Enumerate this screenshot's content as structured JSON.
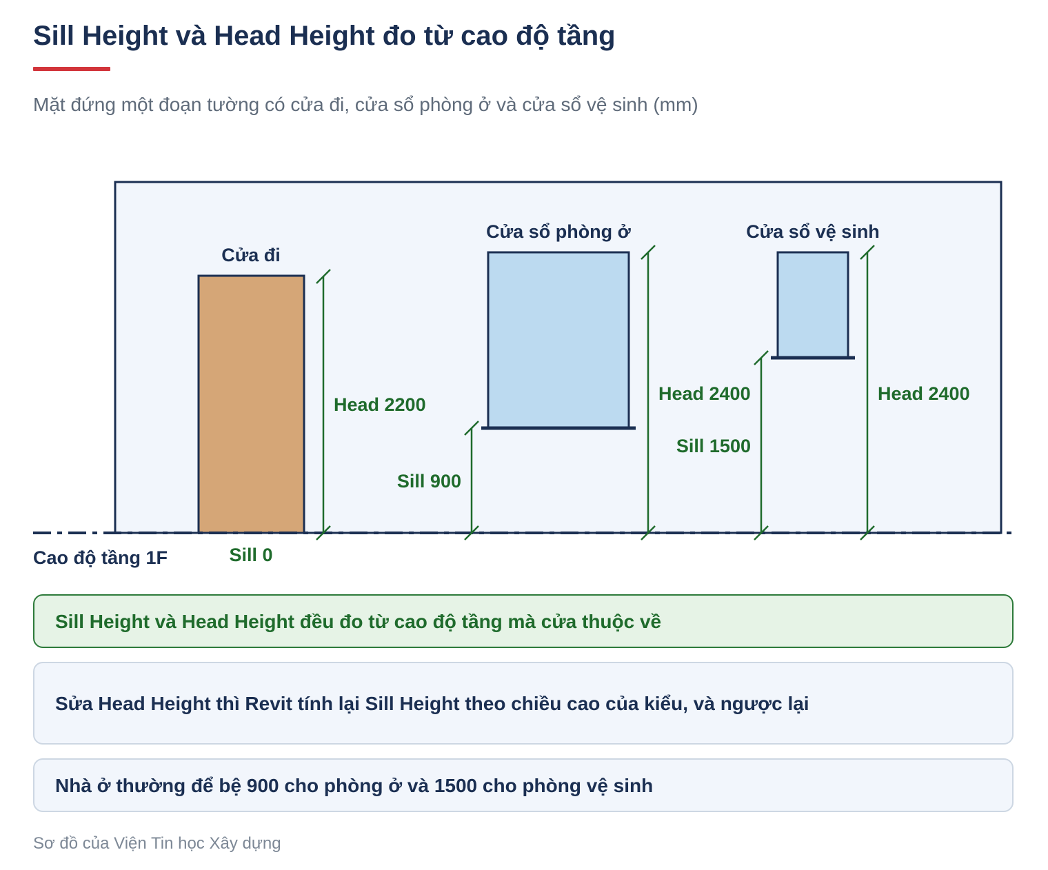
{
  "title": "Sill Height và Head Height đo từ cao độ tầng",
  "subtitle": "Mặt đứng một đoạn tường có cửa đi, cửa sổ phòng ở và cửa sổ vệ sinh (mm)",
  "diagram": {
    "level_label": "Cao độ tầng 1F",
    "openings": [
      {
        "name": "Cửa đi",
        "type": "door",
        "sill_mm": 0,
        "head_mm": 2200,
        "sill_label": "Sill 0",
        "head_label": "Head 2200"
      },
      {
        "name": "Cửa sổ phòng ở",
        "type": "window",
        "sill_mm": 900,
        "head_mm": 2400,
        "sill_label": "Sill 900",
        "head_label": "Head 2400"
      },
      {
        "name": "Cửa sổ vệ sinh",
        "type": "window",
        "sill_mm": 1500,
        "head_mm": 2400,
        "sill_label": "Sill 1500",
        "head_label": "Head 2400"
      }
    ],
    "colors": {
      "wall_fill": "#f2f6fc",
      "wall_stroke": "#1b2f52",
      "door_fill": "#d5a677",
      "window_fill": "#bcdaf0",
      "dimension": "#1f6b2c"
    }
  },
  "notes": [
    "Sill Height và Head Height đều đo từ cao độ tầng mà cửa thuộc về",
    "Sửa Head Height thì Revit tính lại Sill Height theo chiều cao của kiểu, và ngược lại",
    "Nhà ở thường để bệ 900 cho phòng ở và 1500 cho phòng vệ sinh"
  ],
  "footer": "Sơ đồ của Viện Tin học Xây dựng"
}
